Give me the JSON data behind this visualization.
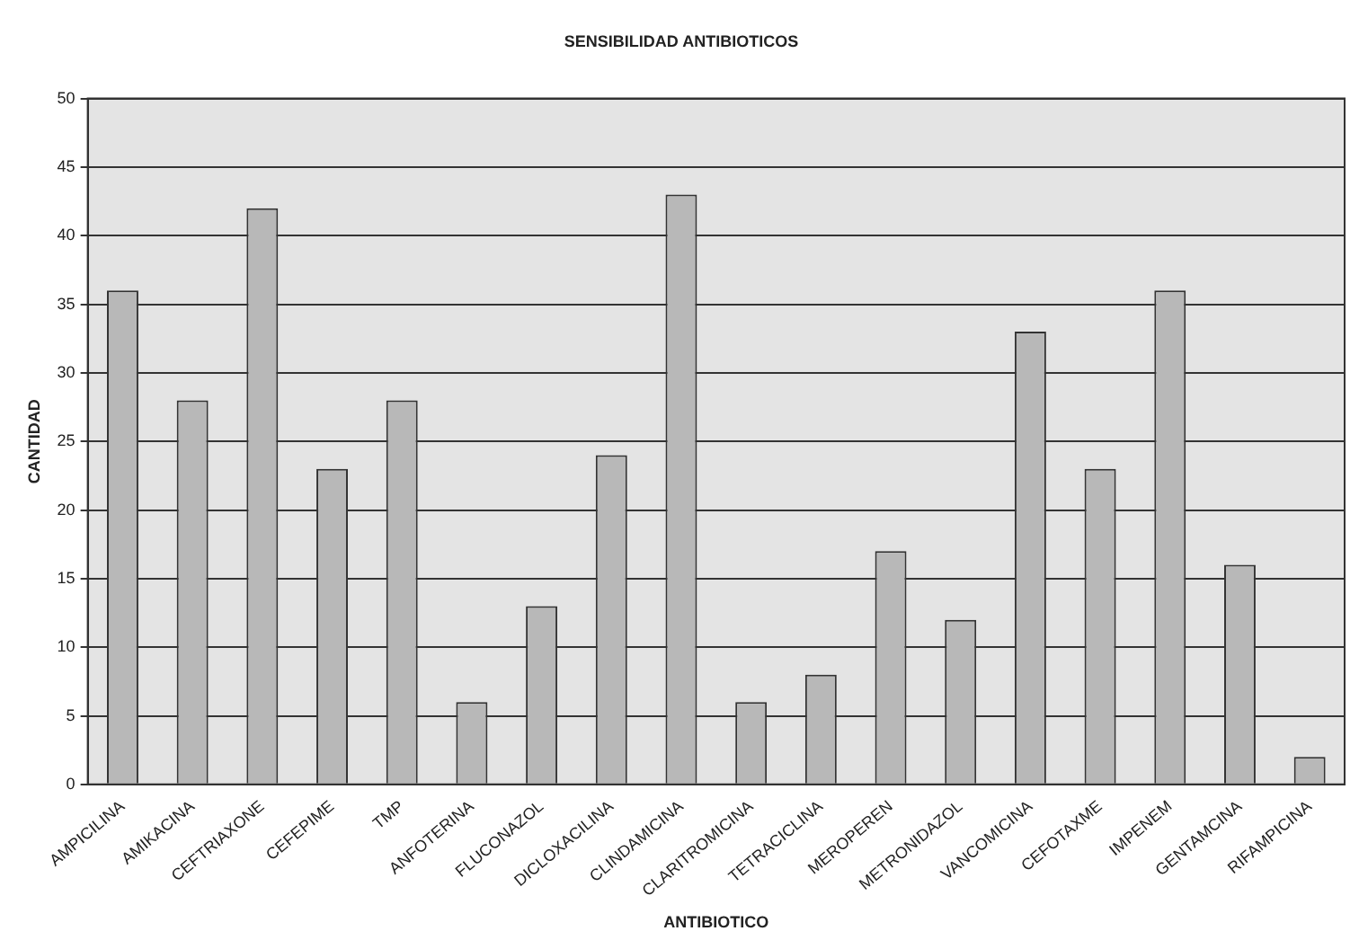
{
  "chart_data": {
    "type": "bar",
    "title": "SENSIBILIDAD ANTIBIOTICOS",
    "xlabel": "ANTIBIOTICO",
    "ylabel": "CANTIDAD",
    "categories": [
      "AMPICILINA",
      "AMIKACINA",
      "CEFTRIAXONE",
      "CEFEPIME",
      "TMP",
      "ANFOTERINA",
      "FLUCONAZOL",
      "DICLOXACILINA",
      "CLINDAMICINA",
      "CLARITROMICINA",
      "TETRACICLINA",
      "MEROPEREN",
      "METRONIDAZOL",
      "VANCOMICINA",
      "CEFOTAXME",
      "IMPENEM",
      "GENTAMCINA",
      "RIFAMPICINA"
    ],
    "values": [
      36,
      28,
      42,
      23,
      28,
      6,
      13,
      24,
      43,
      6,
      8,
      17,
      12,
      33,
      23,
      36,
      16,
      2
    ],
    "color": "#b8b8b8",
    "ylim": [
      0,
      50
    ],
    "yticks": [
      0,
      5,
      10,
      15,
      20,
      25,
      30,
      35,
      40,
      45,
      50
    ],
    "grid": "y"
  }
}
